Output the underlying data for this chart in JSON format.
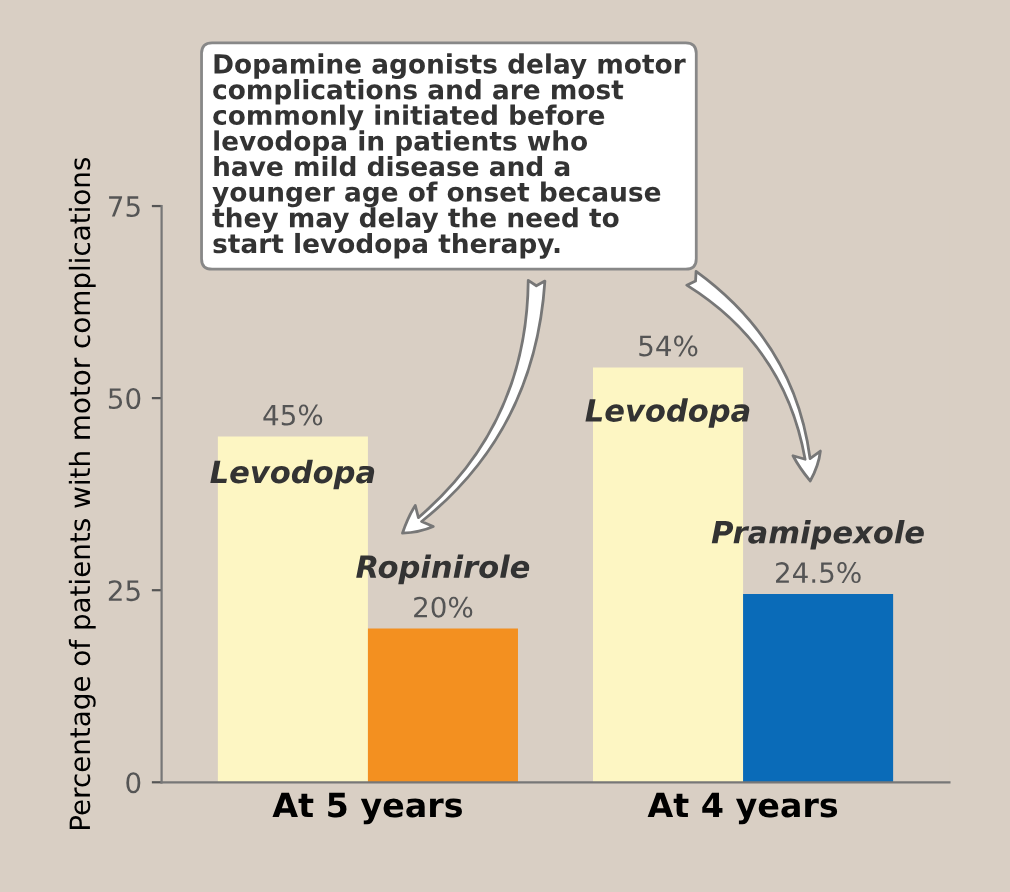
{
  "chart_data": {
    "type": "bar",
    "ylabel": "Percentage of patients with motor complications",
    "categories": [
      "At 5 years",
      "At 4 years"
    ],
    "series": [
      {
        "name": "Levodopa",
        "color": "#fdf6c3",
        "values": [
          45,
          54
        ],
        "value_labels": [
          "45%",
          "54%"
        ]
      },
      {
        "colors": [
          "#f39020",
          "#0a6bb8"
        ],
        "values": [
          20,
          24.5
        ],
        "value_labels": [
          "20%",
          "24.5%"
        ]
      }
    ],
    "ylim": [
      0,
      75
    ],
    "yticks": [
      0,
      25,
      50,
      75
    ],
    "grid": false,
    "legend": false,
    "annotations": [
      "Dopamine agonists delay motor\ncomplications and are most\ncommonly initiated before\nlevodopa in patients who\nhave mild disease and a\nyounger age of onset because\nthey may delay the need to\nstart levodopa therapy.",
      {
        "text": "Ropinirole",
        "x": "At 5 years",
        "y": 20
      },
      {
        "text": "Pramipexole",
        "x": "At 4 years",
        "y": 24.5
      }
    ]
  }
}
